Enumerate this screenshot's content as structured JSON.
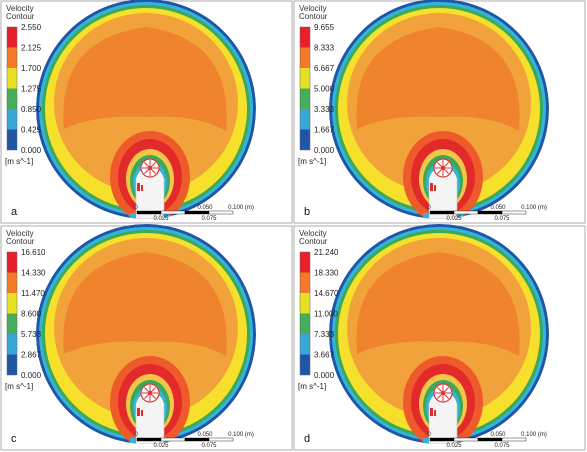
{
  "colors": {
    "levels": [
      "#1f56a8",
      "#38a6d6",
      "#46ad5a",
      "#e8e025",
      "#f47a2a",
      "#e8202a"
    ],
    "fill_outer": "#f6e02b",
    "fill_ring": "#f2a23a",
    "fill_core": "#f0842c",
    "fill_hot": "#e22a2a",
    "edge_cyan": "#35b3d9",
    "edge_blue": "#1f56a8",
    "edge_green": "#3aaa5a"
  },
  "panels": [
    {
      "id": "a",
      "label": "a",
      "title_line1": "Velocity",
      "title_line2": "Contour",
      "ticks": [
        "2.550",
        "2.125",
        "1.700",
        "1.275",
        "0.850",
        "0.425",
        "0.000"
      ],
      "unit": "[m s^-1]",
      "scale_labels": [
        "0",
        "0.050",
        "0.100 (m)"
      ],
      "scale_sublabels": [
        "0.025",
        "0.075"
      ]
    },
    {
      "id": "b",
      "label": "b",
      "title_line1": "Velocity",
      "title_line2": "Contour",
      "ticks": [
        "9.655",
        "8.333",
        "6.667",
        "5.000",
        "3.333",
        "1.667",
        "0.000"
      ],
      "unit": "[m s^-1]",
      "scale_labels": [
        "0",
        "0.050",
        "0.100 (m)"
      ],
      "scale_sublabels": [
        "0.025",
        "0.075"
      ]
    },
    {
      "id": "c",
      "label": "c",
      "title_line1": "Velocity",
      "title_line2": "Contour",
      "ticks": [
        "16.610",
        "14.330",
        "11.470",
        "8.600",
        "5.733",
        "2.867",
        "0.000"
      ],
      "unit": "[m s^-1]",
      "scale_labels": [
        "0",
        "0.050",
        "0.100 (m)"
      ],
      "scale_sublabels": [
        "0.025",
        "0.075"
      ]
    },
    {
      "id": "d",
      "label": "d",
      "title_line1": "Velocity",
      "title_line2": "Contour",
      "ticks": [
        "21.240",
        "18.330",
        "14.670",
        "11.000",
        "7.333",
        "3.667",
        "0.000"
      ],
      "unit": "[m s^-1]",
      "scale_labels": [
        "0",
        "0.050",
        "0.100 (m)"
      ],
      "scale_sublabels": [
        "0.025",
        "0.075"
      ]
    }
  ]
}
